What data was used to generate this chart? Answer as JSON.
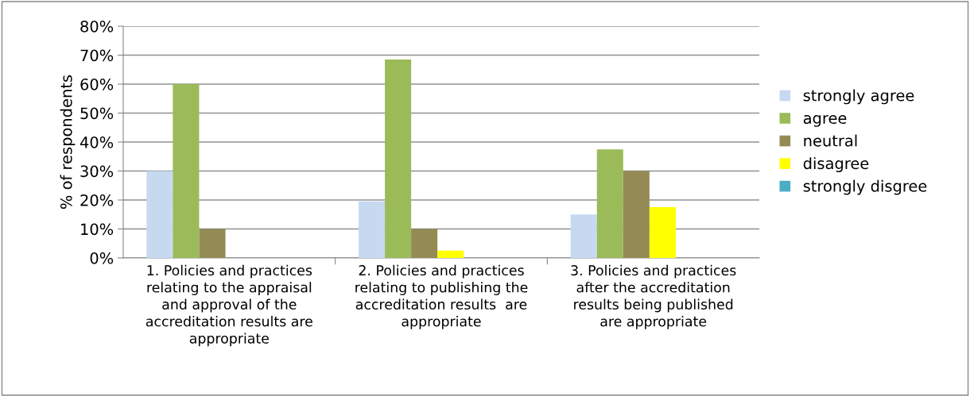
{
  "chart_data": {
    "type": "bar",
    "ylabel": "% of respondents",
    "categories": [
      "1. Policies and practices\nrelating to the appraisal\nand approval of the\naccreditation results are\nappropriate",
      "2. Policies and practices\nrelating to publishing the\naccreditation results  are\nappropriate",
      "3. Policies and practices\nafter the accreditation\nresults being published\nare appropriate"
    ],
    "series": [
      {
        "name": "strongly agree",
        "color": "#c6d9f1",
        "values": [
          30,
          19.5,
          15
        ]
      },
      {
        "name": "agree",
        "color": "#9bbb59",
        "values": [
          60,
          68.5,
          37.5
        ]
      },
      {
        "name": "neutral",
        "color": "#948a54",
        "values": [
          10,
          10,
          30
        ]
      },
      {
        "name": "disagree",
        "color": "#ffff00",
        "values": [
          0,
          2.5,
          17.5
        ]
      },
      {
        "name": "strongly disgree",
        "color": "#4bacc6",
        "values": [
          0,
          0,
          0
        ]
      }
    ],
    "ylim": [
      0,
      80
    ],
    "yticks": [
      {
        "value": 0,
        "label": "0%"
      },
      {
        "value": 10,
        "label": "10%"
      },
      {
        "value": 20,
        "label": "20%"
      },
      {
        "value": 30,
        "label": "30%"
      },
      {
        "value": 40,
        "label": "40%"
      },
      {
        "value": 50,
        "label": "50%"
      },
      {
        "value": 60,
        "label": "60%"
      },
      {
        "value": 70,
        "label": "70%"
      },
      {
        "value": 80,
        "label": "80%"
      }
    ],
    "grid": "y",
    "legend": "right"
  }
}
